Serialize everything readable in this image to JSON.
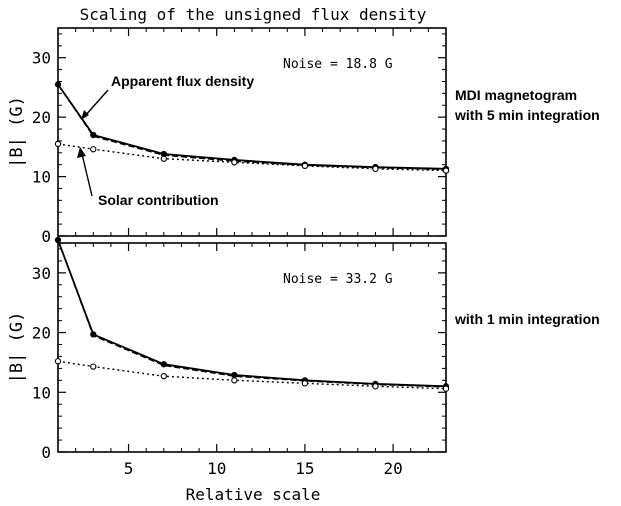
{
  "title": "Scaling of the unsigned flux density",
  "xlabel": "Relative scale",
  "side_notes": {
    "top": "MDI magnetogram with 5 min integration",
    "bottom": "with 1 min integration"
  },
  "chart_data": [
    {
      "type": "line",
      "title": "Scaling of the unsigned flux density",
      "xlabel": "",
      "ylabel": "|B| (G)",
      "xlim": [
        1,
        23
      ],
      "ylim": [
        0,
        35
      ],
      "xticks": [
        5,
        10,
        15,
        20
      ],
      "yticks": [
        0,
        10,
        20,
        30
      ],
      "annotation": "Noise = 18.8 G",
      "callouts": [
        "Apparent flux density",
        "Solar contribution"
      ],
      "x": [
        1,
        3,
        7,
        11,
        15,
        19,
        23
      ],
      "series": [
        {
          "values": [
            25.5,
            17.0,
            13.8,
            12.8,
            12.0,
            11.6,
            11.3
          ],
          "style": "solid"
        },
        {
          "values": [
            25.5,
            16.8,
            13.6,
            12.6,
            11.9,
            11.5,
            11.2
          ],
          "style": "dashed"
        },
        {
          "values": [
            15.5,
            14.6,
            13.0,
            12.4,
            11.8,
            11.3,
            11.0
          ],
          "style": "dotted"
        }
      ]
    },
    {
      "type": "line",
      "title": "",
      "xlabel": "Relative scale",
      "ylabel": "|B| (G)",
      "xlim": [
        1,
        23
      ],
      "ylim": [
        0,
        35
      ],
      "xticks": [
        5,
        10,
        15,
        20
      ],
      "yticks": [
        0,
        10,
        20,
        30
      ],
      "annotation": "Noise = 33.2 G",
      "x": [
        1,
        3,
        7,
        11,
        15,
        19,
        23
      ],
      "series": [
        {
          "values": [
            35.5,
            19.7,
            14.7,
            12.9,
            12.0,
            11.4,
            11.0
          ],
          "style": "solid"
        },
        {
          "values": [
            35.5,
            19.5,
            14.5,
            12.7,
            11.9,
            11.3,
            10.9
          ],
          "style": "dashed"
        },
        {
          "values": [
            15.2,
            14.3,
            12.7,
            12.0,
            11.5,
            11.0,
            10.6
          ],
          "style": "dotted"
        }
      ]
    }
  ]
}
